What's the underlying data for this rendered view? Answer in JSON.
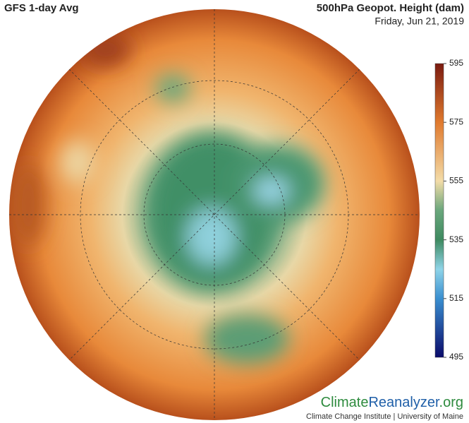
{
  "header": {
    "title": "GFS 1-day Avg",
    "variable": "500hPa Geopot. Height (dam)",
    "date": "Friday, Jun 21, 2019"
  },
  "colorbar": {
    "lim": [
      495,
      595
    ],
    "ticks": [
      595,
      575,
      555,
      535,
      515,
      495
    ]
  },
  "footer": {
    "logo": [
      "Climate",
      "Reanalyzer",
      ".org"
    ],
    "credit": "Climate Change Institute | University of Maine"
  }
}
